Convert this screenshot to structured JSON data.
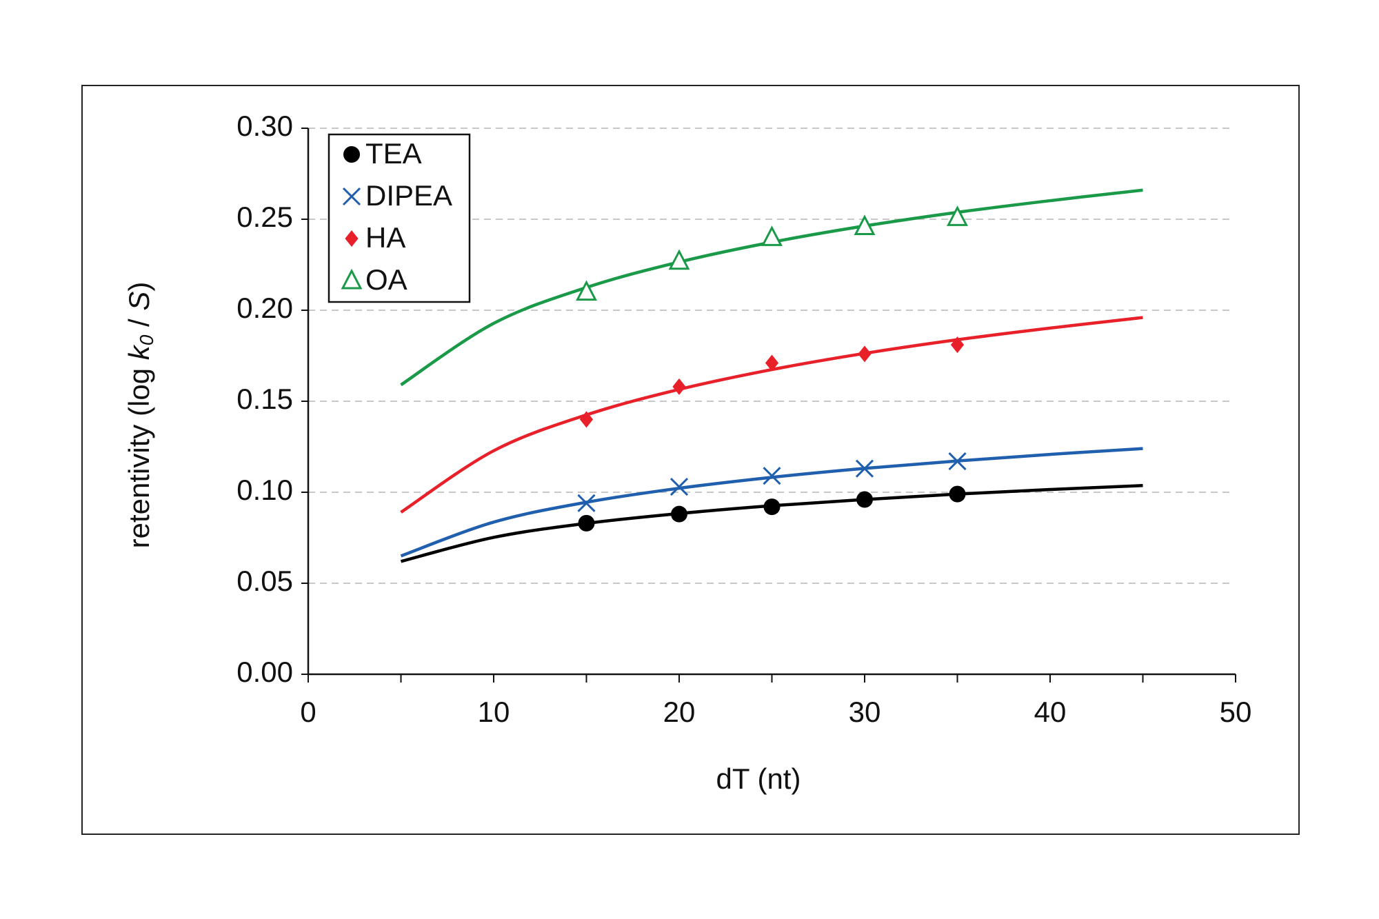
{
  "chart_data": {
    "type": "scatter",
    "xlabel": "dT (nt)",
    "ylabel_parts": [
      "retentivity (log ",
      "k",
      "0",
      " / ",
      "S",
      ")"
    ],
    "xlim": [
      0,
      50
    ],
    "xticks": [
      0,
      10,
      20,
      30,
      40,
      50
    ],
    "xminor_ticks": [
      5,
      15,
      25,
      35,
      45
    ],
    "ylim": [
      0,
      0.3
    ],
    "yticks": [
      {
        "value": 0,
        "label": "0.00"
      },
      {
        "value": 0.05,
        "label": "0.05"
      },
      {
        "value": 0.1,
        "label": "0.10"
      },
      {
        "value": 0.15,
        "label": "0.15"
      },
      {
        "value": 0.2,
        "label": "0.20"
      },
      {
        "value": 0.25,
        "label": "0.25"
      },
      {
        "value": 0.3,
        "label": "0.30"
      }
    ],
    "grid": true,
    "legend": "upper left",
    "series": [
      {
        "name": "TEA",
        "color": "#000000",
        "marker": "circle",
        "x": [
          15,
          20,
          25,
          30,
          35
        ],
        "values": [
          0.083,
          0.088,
          0.092,
          0.096,
          0.099
        ],
        "fit": {
          "x": [
            5,
            10,
            15,
            20,
            25,
            30,
            35,
            40,
            45
          ],
          "values": [
            0.062,
            0.0752,
            0.0829,
            0.0883,
            0.0926,
            0.096,
            0.099,
            0.1015,
            0.1037
          ]
        }
      },
      {
        "name": "DIPEA",
        "color": "#1f5fae",
        "marker": "x",
        "x": [
          15,
          20,
          25,
          30,
          35
        ],
        "values": [
          0.094,
          0.103,
          0.109,
          0.113,
          0.117
        ],
        "fit": {
          "x": [
            5,
            10,
            15,
            20,
            25,
            30,
            35,
            40,
            45
          ],
          "values": [
            0.065,
            0.0836,
            0.0945,
            0.1022,
            0.1082,
            0.1131,
            0.1172,
            0.1208,
            0.124
          ]
        }
      },
      {
        "name": "HA",
        "color": "#e8202a",
        "marker": "diamond",
        "x": [
          15,
          20,
          25,
          30,
          35
        ],
        "values": [
          0.14,
          0.158,
          0.171,
          0.176,
          0.181
        ],
        "fit": {
          "x": [
            5,
            10,
            15,
            20,
            25,
            30,
            35,
            40,
            45
          ],
          "values": [
            0.089,
            0.1228,
            0.1425,
            0.1565,
            0.1674,
            0.1763,
            0.1838,
            0.1902,
            0.196
          ]
        }
      },
      {
        "name": "OA",
        "color": "#1a9a48",
        "marker": "triangle",
        "x": [
          15,
          20,
          25,
          30,
          35
        ],
        "values": [
          0.21,
          0.227,
          0.24,
          0.246,
          0.251
        ],
        "fit": {
          "x": [
            5,
            10,
            15,
            20,
            25,
            30,
            35,
            40,
            45
          ],
          "values": [
            0.159,
            0.1928,
            0.2125,
            0.2265,
            0.2374,
            0.2463,
            0.2538,
            0.2602,
            0.266
          ]
        }
      }
    ]
  }
}
